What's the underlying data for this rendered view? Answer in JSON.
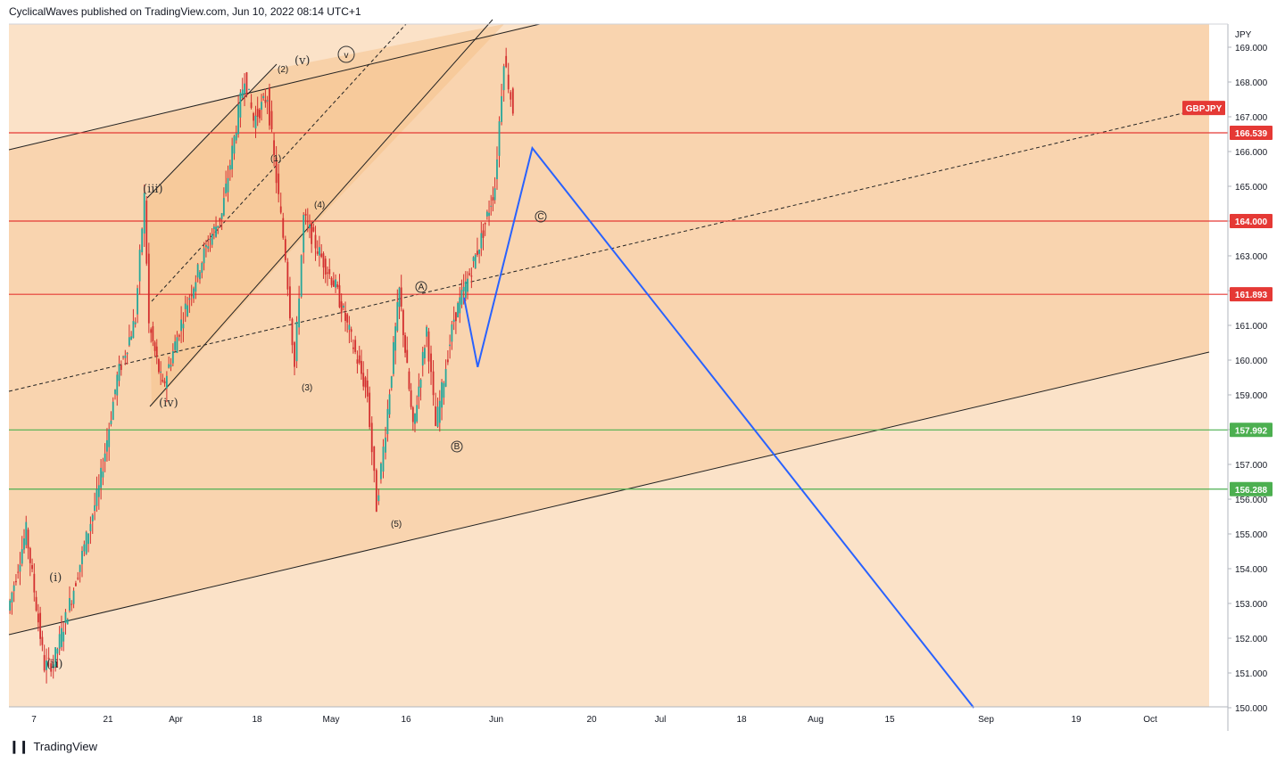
{
  "header": {
    "publisher": "CyclicalWaves published on TradingView.com, Jun 10, 2022 08:14 UTC+1"
  },
  "footer": {
    "brand": "TradingView",
    "logo_icon": "tradingview-logo-icon"
  },
  "colors": {
    "bull": "#26a69a",
    "bear": "#e53935",
    "candle": "#d32f2f",
    "red_line": "#e53935",
    "green_line": "#4caf50",
    "projection": "#2962ff",
    "channel_fill": "#f7c99a",
    "inner_fill": "#f5c088",
    "background": "#fbe2c8"
  },
  "chart_data": {
    "type": "line",
    "symbol": "GBPJPY",
    "currency": "JPY",
    "y_axis_labels": [
      "169.000",
      "168.000",
      "167.000",
      "166.000",
      "165.000",
      "164.000",
      "163.000",
      "162.000",
      "161.000",
      "160.000",
      "159.000",
      "158.000",
      "157.000",
      "156.000",
      "155.000",
      "154.000",
      "153.000",
      "152.000",
      "151.000",
      "150.000"
    ],
    "x_axis_labels": [
      "7",
      "21",
      "Apr",
      "18",
      "May",
      "16",
      "Jun",
      "20",
      "Jul",
      "18",
      "Aug",
      "15",
      "Sep",
      "19",
      "Oct"
    ],
    "ylim": [
      150.0,
      169.5
    ],
    "levels": [
      {
        "label": "166.539",
        "value": 166.539,
        "color": "red"
      },
      {
        "label": "164.000",
        "value": 164.0,
        "color": "red"
      },
      {
        "label": "161.893",
        "value": 161.893,
        "color": "red"
      },
      {
        "label": "157.992",
        "value": 157.992,
        "color": "green"
      },
      {
        "label": "156.288",
        "value": 156.288,
        "color": "green"
      }
    ],
    "symbol_tag": {
      "label": "GBPJPY",
      "value": 167.1
    },
    "price_path": [
      {
        "t": 0,
        "v": 152.8
      },
      {
        "t": 4,
        "v": 155.1
      },
      {
        "t": 8,
        "v": 151.2
      },
      {
        "t": 10,
        "v": 151.3
      },
      {
        "t": 14,
        "v": 153.2
      },
      {
        "t": 20,
        "v": 156.3
      },
      {
        "t": 24,
        "v": 159.5
      },
      {
        "t": 28,
        "v": 161.2
      },
      {
        "t": 30,
        "v": 164.7
      },
      {
        "t": 31,
        "v": 161.0
      },
      {
        "t": 34,
        "v": 159.2
      },
      {
        "t": 39,
        "v": 161.5
      },
      {
        "t": 44,
        "v": 163.4
      },
      {
        "t": 47,
        "v": 164.2
      },
      {
        "t": 52,
        "v": 168.2
      },
      {
        "t": 54,
        "v": 166.9
      },
      {
        "t": 57,
        "v": 167.6
      },
      {
        "t": 59,
        "v": 165.2
      },
      {
        "t": 61,
        "v": 163.0
      },
      {
        "t": 63,
        "v": 159.8
      },
      {
        "t": 65,
        "v": 164.1
      },
      {
        "t": 68,
        "v": 163.2
      },
      {
        "t": 72,
        "v": 162.1
      },
      {
        "t": 75,
        "v": 160.8
      },
      {
        "t": 79,
        "v": 159.0
      },
      {
        "t": 81,
        "v": 155.8
      },
      {
        "t": 83,
        "v": 158.0
      },
      {
        "t": 86,
        "v": 162.0
      },
      {
        "t": 89,
        "v": 158.0
      },
      {
        "t": 92,
        "v": 160.9
      },
      {
        "t": 94,
        "v": 158.1
      },
      {
        "t": 98,
        "v": 161.2
      },
      {
        "t": 101,
        "v": 162.3
      },
      {
        "t": 104,
        "v": 163.5
      },
      {
        "t": 107,
        "v": 165.0
      },
      {
        "t": 109,
        "v": 168.7
      },
      {
        "t": 111,
        "v": 167.2
      }
    ],
    "projection": [
      {
        "t": 100,
        "v": 161.8
      },
      {
        "t": 103,
        "v": 159.8
      },
      {
        "t": 115,
        "v": 166.1
      },
      {
        "t": 212,
        "v": 150.0
      }
    ],
    "wave_labels": {
      "i": "(i)",
      "ii": "(ii)",
      "iii": "(iii)",
      "iv": "(iv)",
      "v": "(v)",
      "v_circle": "v",
      "w1": "(1)",
      "w2": "(2)",
      "w3": "(3)",
      "w4": "(4)",
      "w5": "(5)",
      "A": "A",
      "B": "B",
      "C": "C"
    }
  }
}
